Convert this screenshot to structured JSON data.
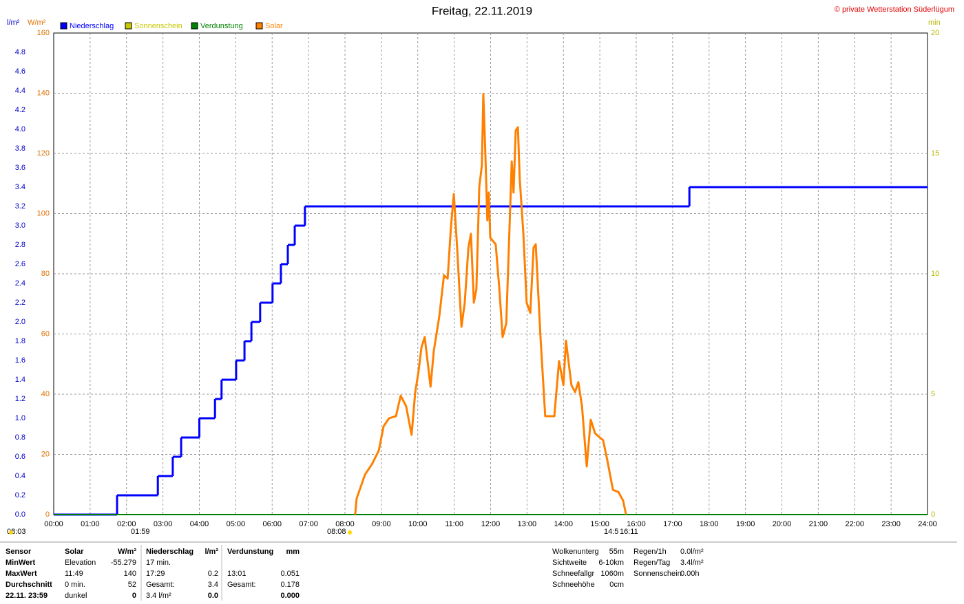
{
  "chart_data": {
    "type": "line",
    "title": "Freitag, 22.11.2019",
    "copyright": "© private Wetterstation Süderlügum",
    "y_unit": "l/m²",
    "y2_unit": "W/m²",
    "y3_unit": "min",
    "xlim": [
      0,
      24
    ],
    "xticks": [
      {
        "value": 0,
        "label": "00:00"
      },
      {
        "value": 1,
        "label": "01:00"
      },
      {
        "value": 2,
        "label": "02:00"
      },
      {
        "value": 3,
        "label": "03:00"
      },
      {
        "value": 4,
        "label": "04:00"
      },
      {
        "value": 5,
        "label": "05:00"
      },
      {
        "value": 6,
        "label": "06:00"
      },
      {
        "value": 7,
        "label": "07:00"
      },
      {
        "value": 8,
        "label": "08:00"
      },
      {
        "value": 9,
        "label": "09:00"
      },
      {
        "value": 10,
        "label": "10:00"
      },
      {
        "value": 11,
        "label": "11:00"
      },
      {
        "value": 12,
        "label": "12:00"
      },
      {
        "value": 13,
        "label": "13:00"
      },
      {
        "value": 14,
        "label": "14:00"
      },
      {
        "value": 15,
        "label": "15:00"
      },
      {
        "value": 16,
        "label": "16:00"
      },
      {
        "value": 17,
        "label": "17:00"
      },
      {
        "value": 18,
        "label": "18:00"
      },
      {
        "value": 19,
        "label": "19:00"
      },
      {
        "value": 20,
        "label": "20:00"
      },
      {
        "value": 21,
        "label": "21:00"
      },
      {
        "value": 22,
        "label": "22:00"
      },
      {
        "value": 23,
        "label": "23:00"
      },
      {
        "value": 24,
        "label": "24:00"
      }
    ],
    "ylim": [
      0,
      5
    ],
    "yticks": [
      {
        "value": 0,
        "label": "0.0"
      },
      0.2,
      0.4,
      0.6,
      0.8,
      {
        "value": 1,
        "label": "1.0"
      },
      1.2,
      1.4,
      1.6,
      1.8,
      {
        "value": 2,
        "label": "2.0"
      },
      2.2,
      2.4,
      2.6,
      2.8,
      {
        "value": 3,
        "label": "3.0"
      },
      3.2,
      3.4,
      3.6,
      3.8,
      {
        "value": 4,
        "label": "4.0"
      },
      4.2,
      4.4,
      4.6,
      4.8
    ],
    "y2lim": [
      0,
      160
    ],
    "y2ticks": [
      0,
      20,
      40,
      60,
      80,
      100,
      120,
      140,
      160
    ],
    "y3lim": [
      0,
      20
    ],
    "y3ticks": [
      0,
      5,
      10,
      15,
      20
    ],
    "grid": true,
    "series": [
      {
        "name": "Niederschlag",
        "color": "#0000ff",
        "step": true,
        "x": [
          0,
          1.74,
          2.86,
          3.27,
          3.5,
          4.0,
          4.43,
          4.61,
          5.01,
          5.24,
          5.43,
          5.67,
          6.01,
          6.24,
          6.43,
          6.62,
          6.9,
          17.46
        ],
        "values": [
          0,
          0.2,
          0.4,
          0.6,
          0.8,
          1.0,
          1.2,
          1.4,
          1.6,
          1.8,
          2.0,
          2.2,
          2.4,
          2.6,
          2.8,
          3.0,
          3.2,
          3.4
        ]
      },
      {
        "name": "Sonnenschein",
        "color": "#c8c800",
        "axis": "y3",
        "x": [],
        "values": []
      },
      {
        "name": "Verdunstung",
        "color": "#008000",
        "x": [
          0,
          24
        ],
        "values": [
          0,
          0
        ]
      },
      {
        "name": "Solar",
        "color": "#ff8000",
        "axis": "y2",
        "x": [
          8.28,
          8.32,
          8.55,
          8.74,
          8.93,
          9.06,
          9.21,
          9.4,
          9.53,
          9.68,
          9.83,
          9.93,
          10.02,
          10.1,
          10.19,
          10.35,
          10.44,
          10.59,
          10.72,
          10.82,
          10.91,
          10.99,
          11.08,
          11.2,
          11.29,
          11.39,
          11.46,
          11.54,
          11.61,
          11.69,
          11.76,
          11.8,
          11.86,
          11.91,
          11.95,
          11.99,
          12.14,
          12.24,
          12.33,
          12.43,
          12.52,
          12.58,
          12.63,
          12.69,
          12.75,
          12.8,
          12.9,
          12.99,
          13.09,
          13.18,
          13.24,
          13.37,
          13.5,
          13.75,
          13.88,
          14.0,
          14.07,
          14.22,
          14.32,
          14.41,
          14.51,
          14.64,
          14.75,
          14.87,
          14.98,
          15.09,
          15.21,
          15.36,
          15.51,
          15.64,
          15.72
        ],
        "values": [
          0,
          5.3,
          13.3,
          16.7,
          21.3,
          29.3,
          32,
          32.7,
          39.5,
          36,
          26.5,
          40.7,
          47.5,
          55.5,
          59,
          42.5,
          54.4,
          65.8,
          79.5,
          78.4,
          95.5,
          106.5,
          88.7,
          62.4,
          70.4,
          88.7,
          93.3,
          70.4,
          75,
          109,
          116,
          139.7,
          118.4,
          97.8,
          107,
          92,
          89.8,
          75,
          59,
          63.5,
          95.5,
          117.3,
          107,
          127.6,
          128.7,
          111.5,
          93.3,
          70.4,
          67,
          88.7,
          89.8,
          59,
          32.7,
          32.7,
          51,
          43,
          57.8,
          43,
          40.7,
          44,
          36,
          16,
          31.5,
          27,
          25.8,
          24.7,
          17.8,
          8.2,
          7.5,
          4.6,
          0
        ]
      }
    ],
    "annotations": [
      "08:03",
      "01:59",
      "08:08",
      "14:5",
      "16:11"
    ]
  },
  "stats": {
    "header": [
      "Sensor",
      "Solar",
      "W/m²",
      "Niederschlag",
      "l/m²",
      "Verdunstung",
      "mm"
    ],
    "rows": [
      [
        "MinWert",
        "Elevation",
        "-55.279",
        "17 min.",
        null,
        null,
        null
      ],
      [
        "MaxWert",
        "11:49",
        "140",
        "17:29",
        "0.2",
        "13:01",
        "0.051"
      ],
      [
        "Durchschnitt",
        "0 min.",
        "52",
        "Gesamt:",
        "3.4",
        "Gesamt:",
        "0.178"
      ],
      [
        "22.11. 23:59",
        "dunkel",
        "0",
        "3.4 l/m²",
        "0.0",
        null,
        "0.000"
      ]
    ]
  },
  "info": {
    "left": [
      [
        "Wolkenunterg",
        "55m"
      ],
      [
        "Sichtweite",
        "6-10km"
      ],
      [
        "Schneefallgr",
        "1060m"
      ],
      [
        "Schneehöhe",
        "0cm"
      ]
    ],
    "right": [
      [
        "Regen/1h",
        "0.0l/m²"
      ],
      [
        "Regen/Tag",
        "3.4l/m²"
      ],
      [
        "Sonnenschein",
        "0.00h"
      ]
    ]
  }
}
